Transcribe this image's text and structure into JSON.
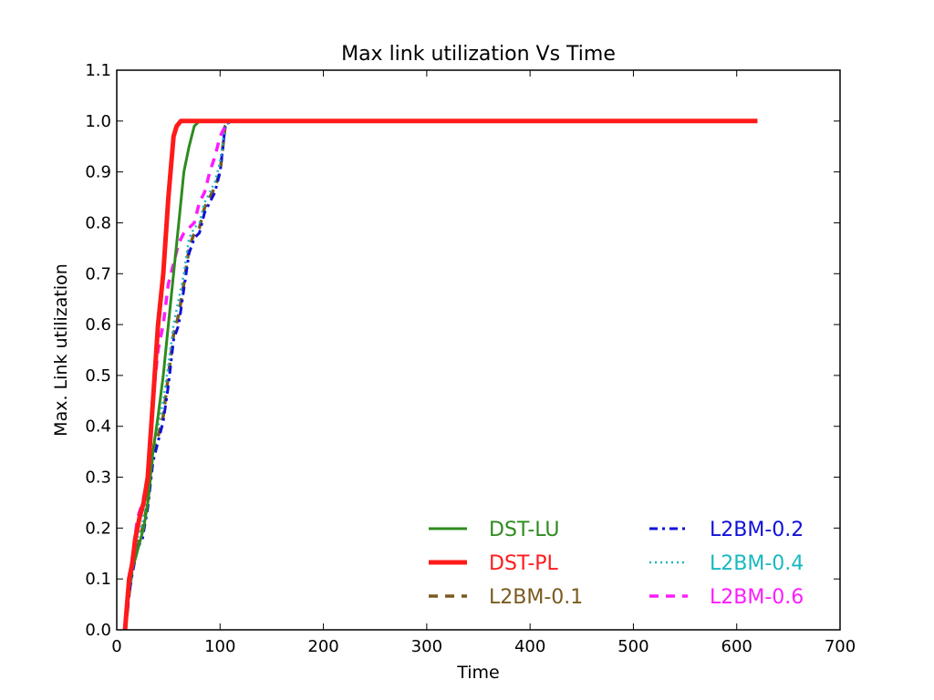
{
  "chart_data": {
    "type": "line",
    "title": "Max link utilization Vs Time",
    "xlabel": "Time",
    "ylabel": "Max. Link utilization",
    "xlim": [
      0,
      700
    ],
    "ylim": [
      0.0,
      1.1
    ],
    "xticks": [
      "0",
      "100",
      "200",
      "300",
      "400",
      "500",
      "600",
      "700"
    ],
    "yticks": [
      "0.0",
      "0.1",
      "0.2",
      "0.3",
      "0.4",
      "0.5",
      "0.6",
      "0.7",
      "0.8",
      "0.9",
      "1.0",
      "1.1"
    ],
    "grid": false,
    "legend_position": "lower-right",
    "series": [
      {
        "name": "DST-LU",
        "color": "#2e8b1e",
        "style": "solid",
        "x": [
          8,
          10,
          12,
          15,
          18,
          22,
          26,
          30,
          35,
          40,
          45,
          50,
          55,
          60,
          65,
          70,
          75,
          80,
          90,
          100,
          620
        ],
        "y": [
          0.0,
          0.04,
          0.08,
          0.12,
          0.14,
          0.17,
          0.2,
          0.25,
          0.35,
          0.42,
          0.5,
          0.6,
          0.7,
          0.8,
          0.9,
          0.95,
          0.99,
          1.0,
          1.0,
          1.0,
          1.0
        ]
      },
      {
        "name": "DST-PL",
        "color": "#ff1a1a",
        "style": "solid-thick",
        "x": [
          8,
          10,
          12,
          15,
          18,
          22,
          26,
          30,
          35,
          40,
          45,
          50,
          55,
          58,
          62,
          66,
          70,
          80,
          620
        ],
        "y": [
          0.0,
          0.05,
          0.1,
          0.13,
          0.18,
          0.22,
          0.25,
          0.3,
          0.45,
          0.6,
          0.7,
          0.85,
          0.97,
          0.99,
          1.0,
          1.0,
          1.0,
          1.0,
          1.0
        ]
      },
      {
        "name": "L2BM-0.1",
        "color": "#7a5a1e",
        "style": "dashed",
        "x": [
          8,
          10,
          12,
          15,
          20,
          25,
          30,
          35,
          40,
          45,
          50,
          55,
          60,
          65,
          70,
          75,
          80,
          85,
          90,
          95,
          100,
          105,
          110,
          620
        ],
        "y": [
          0.0,
          0.03,
          0.07,
          0.12,
          0.17,
          0.2,
          0.25,
          0.35,
          0.38,
          0.42,
          0.5,
          0.58,
          0.62,
          0.68,
          0.75,
          0.78,
          0.79,
          0.83,
          0.85,
          0.87,
          0.9,
          0.99,
          1.0,
          1.0
        ]
      },
      {
        "name": "L2BM-0.2",
        "color": "#1010d8",
        "style": "dashdot",
        "x": [
          8,
          10,
          12,
          15,
          20,
          25,
          30,
          35,
          40,
          45,
          50,
          55,
          60,
          65,
          70,
          75,
          80,
          85,
          90,
          95,
          100,
          105,
          110,
          620
        ],
        "y": [
          0.0,
          0.03,
          0.07,
          0.11,
          0.16,
          0.18,
          0.24,
          0.33,
          0.37,
          0.41,
          0.48,
          0.57,
          0.6,
          0.67,
          0.74,
          0.77,
          0.78,
          0.82,
          0.84,
          0.86,
          0.9,
          0.99,
          1.0,
          1.0
        ]
      },
      {
        "name": "L2BM-0.4",
        "color": "#1ab8c0",
        "style": "dotted",
        "x": [
          8,
          10,
          12,
          15,
          20,
          25,
          30,
          35,
          40,
          45,
          50,
          55,
          60,
          65,
          70,
          75,
          80,
          85,
          90,
          95,
          100,
          105,
          110,
          620
        ],
        "y": [
          0.0,
          0.04,
          0.08,
          0.12,
          0.18,
          0.21,
          0.27,
          0.36,
          0.4,
          0.45,
          0.52,
          0.6,
          0.65,
          0.7,
          0.77,
          0.79,
          0.8,
          0.84,
          0.86,
          0.88,
          0.92,
          0.99,
          1.0,
          1.0
        ]
      },
      {
        "name": "L2BM-0.6",
        "color": "#ff1aff",
        "style": "dashed",
        "x": [
          8,
          10,
          12,
          15,
          20,
          25,
          30,
          35,
          40,
          45,
          50,
          55,
          60,
          65,
          70,
          75,
          80,
          85,
          90,
          95,
          100,
          105,
          110,
          620
        ],
        "y": [
          0.0,
          0.05,
          0.1,
          0.14,
          0.22,
          0.25,
          0.3,
          0.45,
          0.55,
          0.6,
          0.68,
          0.72,
          0.76,
          0.78,
          0.79,
          0.8,
          0.84,
          0.86,
          0.9,
          0.93,
          0.97,
          0.99,
          1.0,
          1.0
        ]
      }
    ]
  }
}
